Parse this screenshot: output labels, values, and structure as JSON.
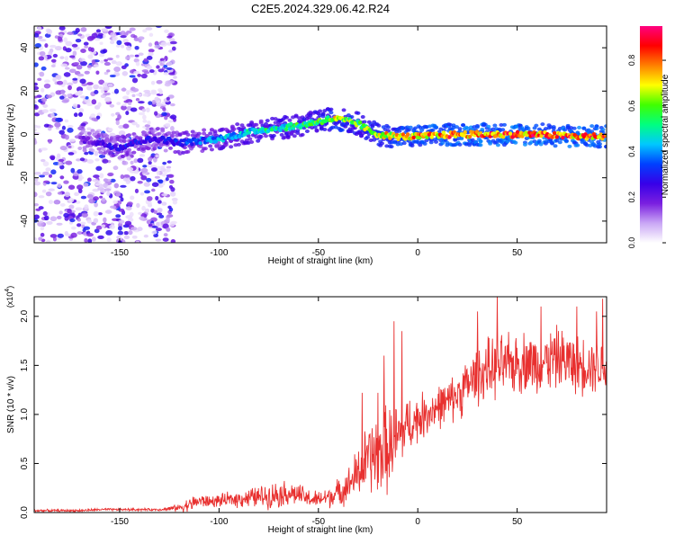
{
  "title": "C2E5.2024.329.06.42.R24",
  "colors": {
    "line": "#e8302f",
    "axis": "#000000",
    "background": "#ffffff"
  },
  "chart_data": [
    {
      "type": "heatmap",
      "xlabel": "Height of straight line (km)",
      "ylabel": "Frequency (Hz)",
      "xlim": [
        -193,
        95
      ],
      "ylim": [
        -50,
        50
      ],
      "x_ticks": [
        -150,
        -100,
        -50,
        0,
        50
      ],
      "x_tick_labels": [
        "-150",
        "-100",
        "-50",
        "0",
        "50"
      ],
      "y_ticks": [
        -40,
        -20,
        0,
        20,
        40
      ],
      "y_tick_labels": [
        "-40",
        "-20",
        "0",
        "20",
        "40"
      ],
      "colorbar": {
        "label": "Normalized spectral amplitude",
        "range": [
          0,
          0.95
        ],
        "ticks": [
          0,
          0.2,
          0.4,
          0.6,
          0.8
        ],
        "tick_labels": [
          "0.0",
          "0.2",
          "0.4",
          "0.6",
          "0.8"
        ],
        "colormap": [
          "#ffffff",
          "#c9a6f5",
          "#7a1fe0",
          "#3700e8",
          "#0040ff",
          "#00c8ff",
          "#00ff80",
          "#40ff00",
          "#ffff00",
          "#ff8000",
          "#ff0000",
          "#ff0080"
        ]
      },
      "noise_region_x": [
        -193,
        -122
      ],
      "ridge": {
        "x": [
          -170,
          -160,
          -150,
          -140,
          -130,
          -120,
          -110,
          -100,
          -90,
          -80,
          -70,
          -60,
          -50,
          -45,
          -40,
          -35,
          -30,
          -25,
          -20,
          -10,
          0,
          20,
          40,
          60,
          80,
          95
        ],
        "frequency": [
          -2,
          -4,
          -6,
          -3,
          -2,
          -4,
          -3,
          -2,
          0,
          2,
          3,
          4,
          6,
          7,
          7,
          6,
          5,
          2,
          0,
          -1,
          -1,
          0,
          0,
          0,
          -1,
          -1
        ],
        "amplitude": [
          0.2,
          0.25,
          0.35,
          0.3,
          0.3,
          0.35,
          0.4,
          0.45,
          0.5,
          0.55,
          0.55,
          0.6,
          0.65,
          0.7,
          0.75,
          0.7,
          0.65,
          0.7,
          0.75,
          0.8,
          0.85,
          0.9,
          0.9,
          0.9,
          0.9,
          0.9
        ]
      }
    },
    {
      "type": "line",
      "xlabel": "Height of straight line (km)",
      "ylabel": "SNR (10 * v/v)",
      "scale_label_prefix": "(x10",
      "scale_label_exp": "4",
      "scale_label_suffix": ")",
      "xlim": [
        -193,
        95
      ],
      "ylim": [
        0,
        2.2
      ],
      "x_ticks": [
        -150,
        -100,
        -50,
        0,
        50
      ],
      "x_tick_labels": [
        "-150",
        "-100",
        "-50",
        "0",
        "50"
      ],
      "y_ticks": [
        0,
        0.5,
        1.0,
        1.5,
        2.0
      ],
      "y_tick_labels": [
        "0.0",
        "0.5",
        "1.0",
        "1.5",
        "2.0"
      ],
      "series": [
        {
          "x": [
            -193,
            -180,
            -170,
            -160,
            -150,
            -140,
            -130,
            -125,
            -120,
            -115,
            -110,
            -105,
            -100,
            -95,
            -90,
            -85,
            -80,
            -75,
            -70,
            -65,
            -60,
            -55,
            -50,
            -45,
            -40,
            -35,
            -30,
            -25,
            -20,
            -15,
            -10,
            -5,
            0,
            5,
            10,
            15,
            20,
            25,
            30,
            35,
            40,
            45,
            50,
            55,
            60,
            65,
            70,
            75,
            80,
            85,
            90,
            95
          ],
          "mean": [
            0.02,
            0.02,
            0.02,
            0.03,
            0.03,
            0.03,
            0.03,
            0.04,
            0.05,
            0.08,
            0.12,
            0.11,
            0.12,
            0.13,
            0.14,
            0.15,
            0.16,
            0.17,
            0.19,
            0.2,
            0.18,
            0.14,
            0.13,
            0.16,
            0.2,
            0.28,
            0.4,
            0.55,
            0.6,
            0.65,
            0.75,
            0.9,
            0.95,
            1.02,
            1.08,
            1.12,
            1.2,
            1.3,
            1.4,
            1.45,
            1.48,
            1.5,
            1.52,
            1.55,
            1.5,
            1.55,
            1.58,
            1.55,
            1.5,
            1.52,
            1.5,
            1.48
          ],
          "spread": [
            0.01,
            0.01,
            0.01,
            0.01,
            0.01,
            0.01,
            0.01,
            0.02,
            0.03,
            0.06,
            0.06,
            0.05,
            0.05,
            0.06,
            0.07,
            0.08,
            0.09,
            0.1,
            0.11,
            0.1,
            0.09,
            0.08,
            0.07,
            0.09,
            0.11,
            0.14,
            0.22,
            0.3,
            0.35,
            0.35,
            0.3,
            0.22,
            0.2,
            0.18,
            0.18,
            0.18,
            0.2,
            0.22,
            0.24,
            0.25,
            0.25,
            0.25,
            0.25,
            0.25,
            0.25,
            0.25,
            0.25,
            0.25,
            0.24,
            0.24,
            0.22,
            0.22
          ]
        }
      ],
      "peaks": [
        [
          -28,
          1.22
        ],
        [
          -20,
          1.22
        ],
        [
          -17,
          1.6
        ],
        [
          -12,
          1.95
        ],
        [
          -8,
          1.85
        ],
        [
          30,
          2.05
        ],
        [
          40,
          2.2
        ],
        [
          62,
          2.1
        ],
        [
          80,
          2.1
        ],
        [
          90,
          2.05
        ],
        [
          93,
          2.18
        ]
      ]
    }
  ]
}
